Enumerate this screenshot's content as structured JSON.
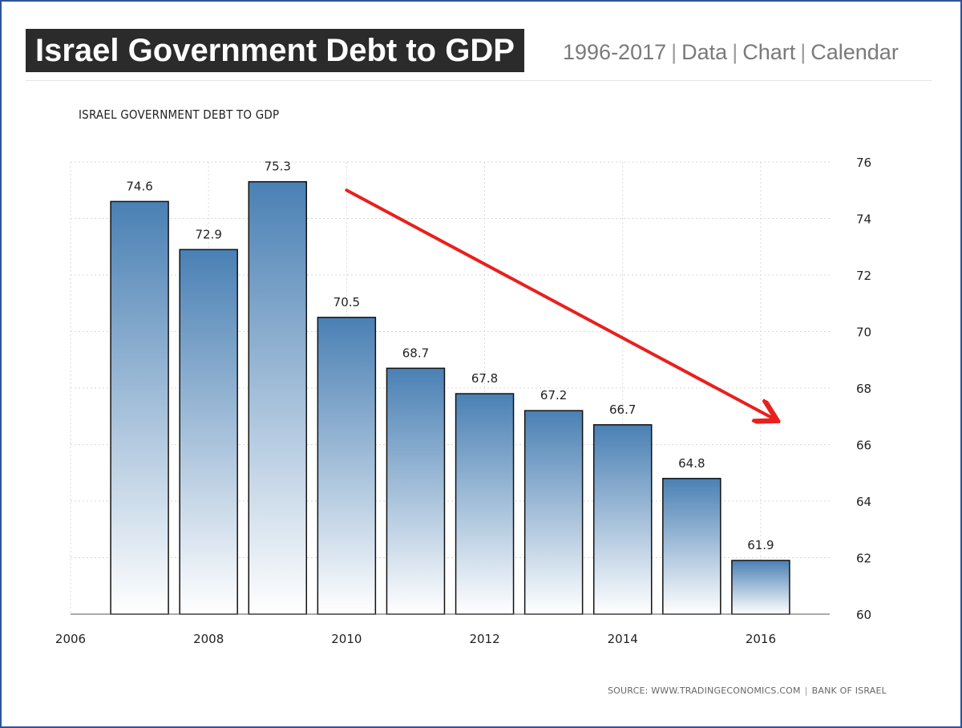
{
  "header": {
    "title": "Israel Government Debt to GDP",
    "links": [
      "1996-2017",
      "Data",
      "Chart",
      "Calendar"
    ]
  },
  "source": {
    "text": "SOURCE: WWW.TRADINGECONOMICS.COM",
    "org": "BANK OF ISRAEL"
  },
  "colors": {
    "bar_top": "#4a80b4",
    "bar_bottom": "#ffffff",
    "arrow": "#e8201e",
    "frame": "#2f5597"
  },
  "chart_data": {
    "type": "bar",
    "title": "ISRAEL GOVERNMENT DEBT TO GDP",
    "categories": [
      "2007",
      "2008",
      "2009",
      "2010",
      "2011",
      "2012",
      "2013",
      "2014",
      "2015",
      "2016"
    ],
    "values": [
      74.6,
      72.9,
      75.3,
      70.5,
      68.7,
      67.8,
      67.2,
      66.7,
      64.8,
      61.9
    ],
    "xlim": [
      2006,
      2017
    ],
    "x_ticks": [
      "2006",
      "2008",
      "2010",
      "2012",
      "2014",
      "2016"
    ],
    "ylim": [
      60,
      76
    ],
    "y_ticks": [
      "60",
      "62",
      "64",
      "66",
      "68",
      "70",
      "72",
      "74",
      "76"
    ],
    "y_axis_side": "right",
    "grid": true,
    "data_labels": true,
    "annotation": {
      "type": "arrow",
      "from": [
        2010,
        75.0
      ],
      "to": [
        2016.2,
        66.9
      ]
    }
  }
}
